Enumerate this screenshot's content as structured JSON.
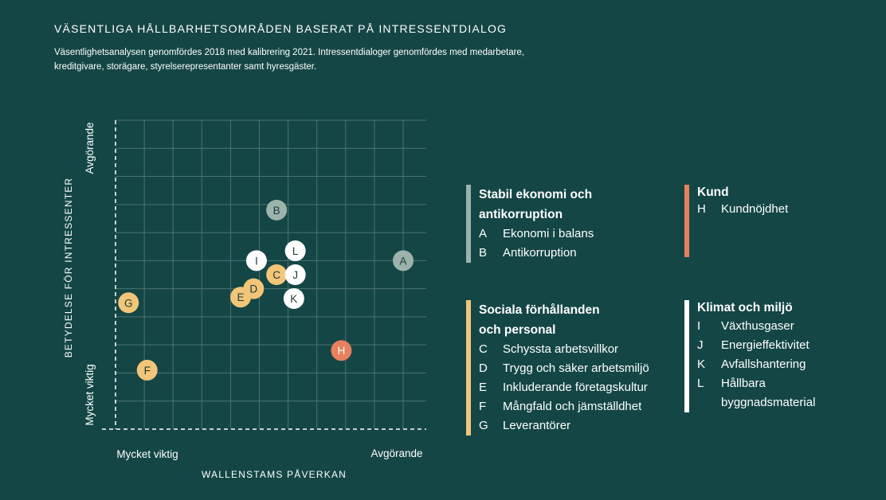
{
  "title": "VÄSENTLIGA HÅLLBARHETSOMRÅDEN BASERAT PÅ INTRESSENTDIALOG",
  "subtitle": "Väsentlighetsanalysen genomfördes 2018 med kalibrering 2021. Intressentdialoger genomfördes med medarbetare, kreditgivare, storägare, styrelserepresentanter samt hyresgäster.",
  "chart_data": {
    "type": "scatter",
    "xlabel": "WALLENSTAMS PÅVERKAN",
    "ylabel": "BETYDELSE FÖR INTRESSENTER",
    "x_axis_labels": {
      "low": "Mycket viktig",
      "high": "Avgörande"
    },
    "y_axis_labels": {
      "low": "Mycket viktig",
      "high": "Avgörande"
    },
    "xlim": [
      0,
      10
    ],
    "ylim": [
      0,
      11
    ],
    "grid": true,
    "points": [
      {
        "label": "A",
        "x": 10.0,
        "y": 6.0,
        "group": "stabil"
      },
      {
        "label": "B",
        "x": 5.6,
        "y": 7.8,
        "group": "stabil"
      },
      {
        "label": "C",
        "x": 5.6,
        "y": 5.5,
        "group": "social"
      },
      {
        "label": "D",
        "x": 4.8,
        "y": 5.0,
        "group": "social"
      },
      {
        "label": "E",
        "x": 4.35,
        "y": 4.7,
        "group": "social"
      },
      {
        "label": "F",
        "x": 1.1,
        "y": 2.1,
        "group": "social"
      },
      {
        "label": "G",
        "x": 0.45,
        "y": 4.5,
        "group": "social"
      },
      {
        "label": "H",
        "x": 7.85,
        "y": 2.8,
        "group": "kund"
      },
      {
        "label": "I",
        "x": 4.9,
        "y": 6.0,
        "group": "klimat"
      },
      {
        "label": "J",
        "x": 6.25,
        "y": 5.5,
        "group": "klimat"
      },
      {
        "label": "K",
        "x": 6.2,
        "y": 4.65,
        "group": "klimat"
      },
      {
        "label": "L",
        "x": 6.25,
        "y": 6.35,
        "group": "klimat"
      }
    ]
  },
  "colors": {
    "background": "#144645",
    "grid": "#4b7472",
    "stabil": "#9cb3ab",
    "social": "#f2c578",
    "kund": "#e8805e",
    "klimat": "#ffffff",
    "stabil_text": "#1c3a38",
    "social_text": "#1c3a38",
    "kund_text": "#ffffff",
    "klimat_text": "#1c3a38"
  },
  "legend": {
    "stabil": {
      "heading": "Stabil ekonomi och antikorruption",
      "items": [
        {
          "letter": "A",
          "text": "Ekonomi i balans"
        },
        {
          "letter": "B",
          "text": "Antikorruption"
        }
      ]
    },
    "kund": {
      "heading": "Kund",
      "items": [
        {
          "letter": "H",
          "text": "Kundnöjdhet"
        }
      ]
    },
    "social": {
      "heading": "Sociala förhållanden och personal",
      "items": [
        {
          "letter": "C",
          "text": "Schyssta arbetsvillkor"
        },
        {
          "letter": "D",
          "text": "Trygg och säker arbetsmiljö"
        },
        {
          "letter": "E",
          "text": "Inkluderande företagskultur"
        },
        {
          "letter": "F",
          "text": "Mångfald och jämställdhet"
        },
        {
          "letter": "G",
          "text": "Leverantörer"
        }
      ]
    },
    "klimat": {
      "heading": "Klimat och miljö",
      "items": [
        {
          "letter": "I",
          "text": "Växthusgaser"
        },
        {
          "letter": "J",
          "text": "Energieffektivitet"
        },
        {
          "letter": "K",
          "text": "Avfallshantering"
        },
        {
          "letter": "L",
          "text": "Hållbara byggnadsmaterial"
        }
      ]
    }
  }
}
